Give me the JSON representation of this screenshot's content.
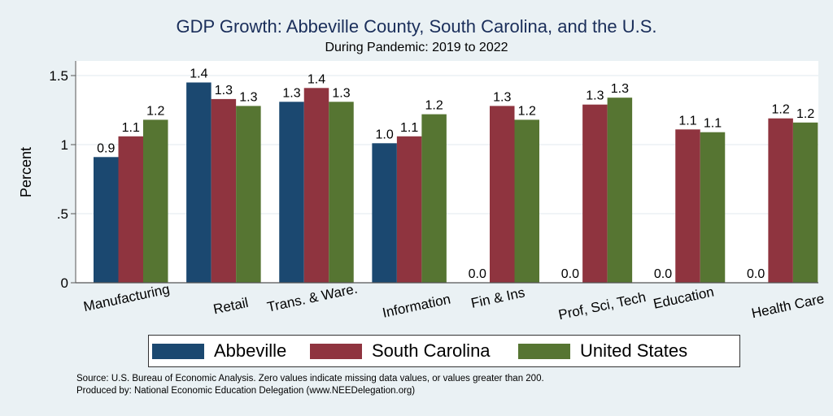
{
  "chart_data": {
    "type": "bar",
    "title": "GDP Growth: Abbeville County, South Carolina, and the U.S.",
    "subtitle": "During Pandemic: 2019 to 2022",
    "xlabel": "",
    "ylabel": "Percent",
    "ylim": [
      0,
      1.6
    ],
    "yticks": [
      0,
      0.5,
      1,
      1.5
    ],
    "ytick_labels": [
      "0",
      ".5",
      "1",
      "1.5"
    ],
    "grid": true,
    "legend_position": "bottom",
    "categories": [
      "Manufacturing",
      "Retail",
      "Trans. & Ware.",
      "Information",
      "Fin & Ins",
      "Prof, Sci, Tech",
      "Education",
      "Health Care"
    ],
    "series": [
      {
        "name": "Abbeville",
        "color": "#1b4870",
        "values": [
          0.91,
          1.45,
          1.31,
          1.01,
          0.0,
          0.0,
          0.0,
          0.0
        ],
        "labels": [
          "0.9",
          "1.4",
          "1.3",
          "1.0",
          "0.0",
          "0.0",
          "0.0",
          "0.0"
        ]
      },
      {
        "name": "South Carolina",
        "color": "#8f343f",
        "values": [
          1.06,
          1.33,
          1.41,
          1.06,
          1.28,
          1.29,
          1.11,
          1.19
        ],
        "labels": [
          "1.1",
          "1.3",
          "1.4",
          "1.1",
          "1.3",
          "1.3",
          "1.1",
          "1.2"
        ]
      },
      {
        "name": "United States",
        "color": "#567532",
        "values": [
          1.18,
          1.28,
          1.31,
          1.22,
          1.18,
          1.34,
          1.09,
          1.16
        ],
        "labels": [
          "1.2",
          "1.3",
          "1.3",
          "1.2",
          "1.2",
          "1.3",
          "1.1",
          "1.2"
        ]
      }
    ]
  },
  "notes": {
    "source": "Source: U.S. Bureau of Economic Analysis. Zero values indicate missing data values, or values greater than 200.",
    "produced_by": "Produced by: National Economic Education Delegation (www.NEEDelegation.org)"
  }
}
